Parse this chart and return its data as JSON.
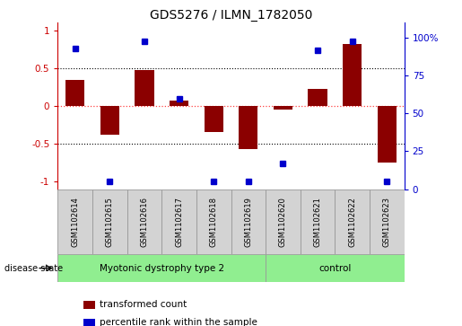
{
  "title": "GDS5276 / ILMN_1782050",
  "samples": [
    "GSM1102614",
    "GSM1102615",
    "GSM1102616",
    "GSM1102617",
    "GSM1102618",
    "GSM1102619",
    "GSM1102620",
    "GSM1102621",
    "GSM1102622",
    "GSM1102623"
  ],
  "transformed_count": [
    0.35,
    -0.38,
    0.48,
    0.07,
    -0.35,
    -0.57,
    -0.05,
    0.22,
    0.82,
    -0.75
  ],
  "percentile_rank": [
    93,
    5,
    98,
    60,
    5,
    5,
    17,
    92,
    98,
    5
  ],
  "groups": [
    {
      "label": "Myotonic dystrophy type 2",
      "start": 0,
      "end": 6,
      "color": "#90EE90"
    },
    {
      "label": "control",
      "start": 6,
      "end": 10,
      "color": "#90EE90"
    }
  ],
  "bar_color": "#8B0000",
  "dot_color": "#0000CC",
  "ylim_left": [
    -1.1,
    1.1
  ],
  "ylim_right": [
    0,
    110
  ],
  "yticks_left": [
    -1,
    -0.5,
    0,
    0.5,
    1
  ],
  "yticks_right": [
    0,
    25,
    50,
    75,
    100
  ],
  "hlines": [
    0.5,
    -0.5
  ],
  "hline_zero_color": "#FF4444",
  "grid_color": "black",
  "disease_state_label": "disease state",
  "legend_items": [
    {
      "label": "transformed count",
      "color": "#8B0000"
    },
    {
      "label": "percentile rank within the sample",
      "color": "#0000CC"
    }
  ],
  "sample_box_color": "#D3D3D3",
  "sample_box_edge_color": "#999999"
}
